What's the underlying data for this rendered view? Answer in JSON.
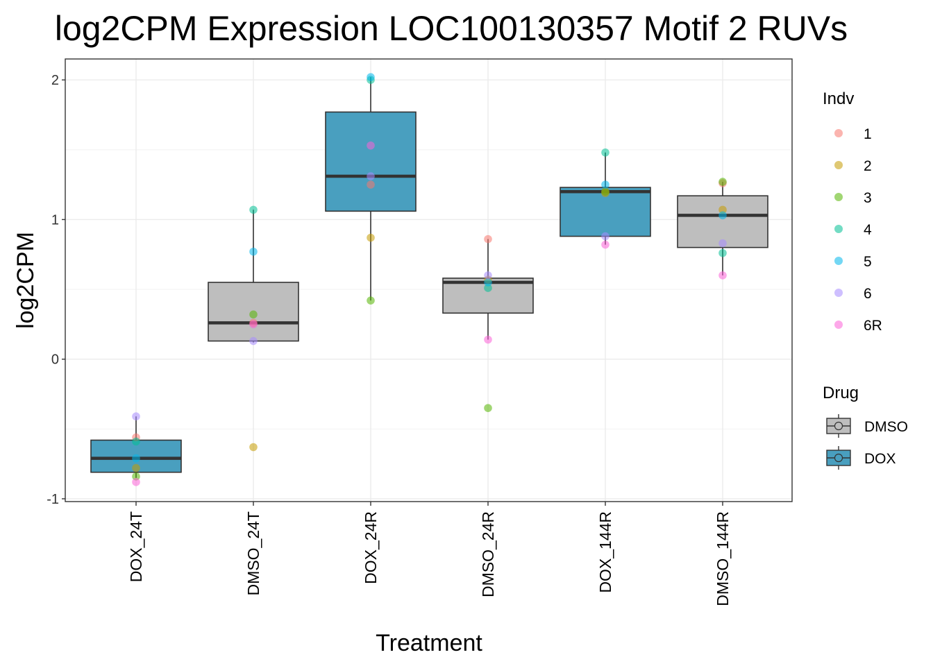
{
  "chart_data": {
    "type": "boxplot",
    "title": "log2CPM Expression LOC100130357 Motif 2 RUVs",
    "xlabel": "Treatment",
    "ylabel": "log2CPM",
    "ylim": [
      -1.02,
      2.15
    ],
    "yticks": [
      -1,
      0,
      1,
      2
    ],
    "categories": [
      "DOX_24T",
      "DMSO_24T",
      "DOX_24R",
      "DMSO_24R",
      "DOX_144R",
      "DMSO_144R"
    ],
    "grid": true,
    "boxes": [
      {
        "category": "DOX_24T",
        "drug": "DOX",
        "whisker_low": -0.85,
        "q1": -0.81,
        "median": -0.71,
        "q3": -0.58,
        "whisker_high": -0.41
      },
      {
        "category": "DMSO_24T",
        "drug": "DMSO",
        "whisker_low": 0.12,
        "q1": 0.13,
        "median": 0.26,
        "q3": 0.55,
        "whisker_high": 1.07
      },
      {
        "category": "DOX_24R",
        "drug": "DOX",
        "whisker_low": 0.42,
        "q1": 1.06,
        "median": 1.31,
        "q3": 1.77,
        "whisker_high": 2.02
      },
      {
        "category": "DMSO_24R",
        "drug": "DMSO",
        "whisker_low": 0.14,
        "q1": 0.33,
        "median": 0.55,
        "q3": 0.58,
        "whisker_high": 0.86
      },
      {
        "category": "DOX_144R",
        "drug": "DOX",
        "whisker_low": 0.82,
        "q1": 0.88,
        "median": 1.2,
        "q3": 1.23,
        "whisker_high": 1.48
      },
      {
        "category": "DMSO_144R",
        "drug": "DMSO",
        "whisker_low": 0.6,
        "q1": 0.8,
        "median": 1.03,
        "q3": 1.17,
        "whisker_high": 1.27
      }
    ],
    "points": [
      {
        "category": "DOX_24T",
        "indv": "1",
        "y": -0.56
      },
      {
        "category": "DOX_24T",
        "indv": "2",
        "y": -0.78
      },
      {
        "category": "DOX_24T",
        "indv": "3",
        "y": -0.84
      },
      {
        "category": "DOX_24T",
        "indv": "4",
        "y": -0.59
      },
      {
        "category": "DOX_24T",
        "indv": "5",
        "y": -0.71
      },
      {
        "category": "DOX_24T",
        "indv": "6",
        "y": -0.41
      },
      {
        "category": "DOX_24T",
        "indv": "6R",
        "y": -0.88
      },
      {
        "category": "DMSO_24T",
        "indv": "1",
        "y": 0.26
      },
      {
        "category": "DMSO_24T",
        "indv": "2",
        "y": -0.63
      },
      {
        "category": "DMSO_24T",
        "indv": "3",
        "y": 0.32
      },
      {
        "category": "DMSO_24T",
        "indv": "4",
        "y": 1.07
      },
      {
        "category": "DMSO_24T",
        "indv": "5",
        "y": 0.77
      },
      {
        "category": "DMSO_24T",
        "indv": "6",
        "y": 0.13
      },
      {
        "category": "DMSO_24T",
        "indv": "6R",
        "y": 0.25
      },
      {
        "category": "DOX_24R",
        "indv": "1",
        "y": 1.25
      },
      {
        "category": "DOX_24R",
        "indv": "2",
        "y": 0.87
      },
      {
        "category": "DOX_24R",
        "indv": "3",
        "y": 0.42
      },
      {
        "category": "DOX_24R",
        "indv": "4",
        "y": 2.0
      },
      {
        "category": "DOX_24R",
        "indv": "5",
        "y": 2.02
      },
      {
        "category": "DOX_24R",
        "indv": "6",
        "y": 1.31
      },
      {
        "category": "DOX_24R",
        "indv": "6R",
        "y": 1.53
      },
      {
        "category": "DMSO_24R",
        "indv": "1",
        "y": 0.86
      },
      {
        "category": "DMSO_24R",
        "indv": "2",
        "y": 0.57
      },
      {
        "category": "DMSO_24R",
        "indv": "3",
        "y": -0.35
      },
      {
        "category": "DMSO_24R",
        "indv": "4",
        "y": 0.51
      },
      {
        "category": "DMSO_24R",
        "indv": "5",
        "y": 0.55
      },
      {
        "category": "DMSO_24R",
        "indv": "6",
        "y": 0.6
      },
      {
        "category": "DMSO_24R",
        "indv": "6R",
        "y": 0.14
      },
      {
        "category": "DOX_144R",
        "indv": "1",
        "y": 1.2
      },
      {
        "category": "DOX_144R",
        "indv": "2",
        "y": 1.19
      },
      {
        "category": "DOX_144R",
        "indv": "3",
        "y": 1.2
      },
      {
        "category": "DOX_144R",
        "indv": "4",
        "y": 1.48
      },
      {
        "category": "DOX_144R",
        "indv": "5",
        "y": 1.25
      },
      {
        "category": "DOX_144R",
        "indv": "6",
        "y": 0.88
      },
      {
        "category": "DOX_144R",
        "indv": "6R",
        "y": 0.82
      },
      {
        "category": "DMSO_144R",
        "indv": "1",
        "y": 1.26
      },
      {
        "category": "DMSO_144R",
        "indv": "2",
        "y": 1.07
      },
      {
        "category": "DMSO_144R",
        "indv": "3",
        "y": 1.27
      },
      {
        "category": "DMSO_144R",
        "indv": "4",
        "y": 0.76
      },
      {
        "category": "DMSO_144R",
        "indv": "5",
        "y": 1.03
      },
      {
        "category": "DMSO_144R",
        "indv": "6",
        "y": 0.83
      },
      {
        "category": "DMSO_144R",
        "indv": "6R",
        "y": 0.6
      }
    ],
    "legend_indv": {
      "title": "Indv",
      "items": [
        {
          "label": "1",
          "color": "#F8766D"
        },
        {
          "label": "2",
          "color": "#C49A00"
        },
        {
          "label": "3",
          "color": "#53B400"
        },
        {
          "label": "4",
          "color": "#00C094"
        },
        {
          "label": "5",
          "color": "#00B6EB"
        },
        {
          "label": "6",
          "color": "#A58AFF"
        },
        {
          "label": "6R",
          "color": "#FB61D7"
        }
      ]
    },
    "legend_drug": {
      "title": "Drug",
      "items": [
        {
          "label": "DMSO",
          "color": "#BEBEBE"
        },
        {
          "label": "DOX",
          "color": "#499FBF"
        }
      ]
    },
    "legend_placement": "right"
  }
}
